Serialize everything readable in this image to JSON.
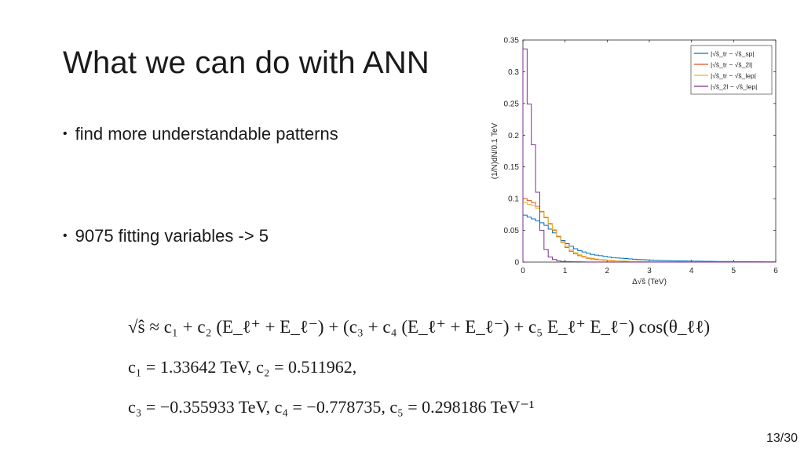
{
  "slide": {
    "title": "What we can do with ANN",
    "bullets": [
      "find more understandable patterns",
      "9075 fitting variables -> 5"
    ],
    "formulas": [
      "√ŝ ≈ c₁ + c₂ (E_ℓ⁺ + E_ℓ⁻) + (c₃ + c₄ (E_ℓ⁺ + E_ℓ⁻) + c₅ E_ℓ⁺ E_ℓ⁻) cos(θ_ℓℓ)",
      "c₁ = 1.33642 TeV,   c₂ = 0.511962,",
      "c₃ = −0.355933 TeV,   c₄ = −0.778735,   c₅ = 0.298186 TeV⁻¹"
    ],
    "page_number": "13/30"
  },
  "chart_data": {
    "type": "line",
    "xlabel": "Δ√ŝ (TeV)",
    "ylabel": "(1/N)dN/0.1 TeV",
    "xlim": [
      0,
      6
    ],
    "ylim": [
      0,
      0.35
    ],
    "xticks": [
      0,
      1,
      2,
      3,
      4,
      5,
      6
    ],
    "yticks": [
      0,
      0.05,
      0.1,
      0.15,
      0.2,
      0.25,
      0.3,
      0.35
    ],
    "grid": false,
    "legend_position": "top-right",
    "bin_width": 0.1,
    "series": [
      {
        "name": "|√ŝ_tr − √ŝ_sp|",
        "color": "#0072bd",
        "values": [
          0.074,
          0.071,
          0.068,
          0.065,
          0.062,
          0.058,
          0.052,
          0.046,
          0.04,
          0.034,
          0.029,
          0.025,
          0.021,
          0.018,
          0.016,
          0.014,
          0.012,
          0.011,
          0.01,
          0.009,
          0.008,
          0.007,
          0.0065,
          0.006,
          0.0055,
          0.005,
          0.0045,
          0.004,
          0.0038,
          0.0035,
          0.0032,
          0.003,
          0.0028,
          0.0026,
          0.0024,
          0.0022,
          0.002,
          0.0019,
          0.0018,
          0.0017,
          0.0016,
          0.0015,
          0.0014,
          0.0013,
          0.0012,
          0.0011,
          0.001,
          0.001,
          0.0009,
          0.0009,
          0.0008,
          0.0008,
          0.0007,
          0.0007,
          0.0006,
          0.0006,
          0.0006,
          0.0005,
          0.0005,
          0.0005
        ]
      },
      {
        "name": "|√ŝ_tr − √ŝ_2l|",
        "color": "#d95319",
        "values": [
          0.1,
          0.097,
          0.094,
          0.088,
          0.08,
          0.07,
          0.06,
          0.05,
          0.04,
          0.031,
          0.023,
          0.017,
          0.013,
          0.01,
          0.008,
          0.006,
          0.005,
          0.004,
          0.0035,
          0.003,
          0.0025,
          0.002,
          0.0018,
          0.0015,
          0.0013,
          0.0011,
          0.001,
          0.0009,
          0.0008,
          0.0007,
          0.0006,
          0.0005,
          0.0005,
          0.0004,
          0.0004,
          0.0003,
          0.0003,
          0.0003,
          0.0002,
          0.0002,
          0.0002,
          0.0002,
          0.0002,
          0.0001,
          0.0001,
          0.0001,
          0.0001,
          0.0001,
          0.0001,
          0.0001,
          0.0001,
          0.0001,
          0.0001,
          0.0001,
          0.0001,
          0.0001,
          0.0001,
          0.0001,
          0.0001,
          0.0001
        ]
      },
      {
        "name": "|√ŝ_tr − √ŝ_lep|",
        "color": "#edb120",
        "values": [
          0.094,
          0.091,
          0.089,
          0.085,
          0.079,
          0.071,
          0.061,
          0.051,
          0.041,
          0.032,
          0.025,
          0.019,
          0.015,
          0.012,
          0.009,
          0.007,
          0.006,
          0.005,
          0.004,
          0.0035,
          0.003,
          0.0025,
          0.002,
          0.0018,
          0.0015,
          0.0013,
          0.0011,
          0.001,
          0.0009,
          0.0008,
          0.0007,
          0.0006,
          0.0005,
          0.0005,
          0.0004,
          0.0004,
          0.0003,
          0.0003,
          0.0003,
          0.0002,
          0.0002,
          0.0002,
          0.0002,
          0.0002,
          0.0001,
          0.0001,
          0.0001,
          0.0001,
          0.0001,
          0.0001,
          0.0001,
          0.0001,
          0.0001,
          0.0001,
          0.0001,
          0.0001,
          0.0001,
          0.0001,
          0.0001,
          0.0001
        ]
      },
      {
        "name": "|√ŝ_2l − √ŝ_lep|",
        "color": "#7e2f8e",
        "values": [
          0.336,
          0.249,
          0.185,
          0.11,
          0.05,
          0.02,
          0.008,
          0.004,
          0.002,
          0.001,
          0.0008,
          0.0006,
          0.0005,
          0.0004,
          0.0003,
          0.0002,
          0.0002,
          0.0001,
          0.0001,
          0.0001,
          0.0001,
          0.0001,
          0.0001,
          0.0001,
          0.0001,
          0,
          0,
          0,
          0,
          0,
          0,
          0,
          0,
          0,
          0,
          0,
          0,
          0,
          0,
          0,
          0,
          0,
          0,
          0,
          0,
          0,
          0,
          0,
          0,
          0,
          0,
          0,
          0,
          0,
          0,
          0,
          0,
          0,
          0,
          0
        ]
      }
    ]
  }
}
